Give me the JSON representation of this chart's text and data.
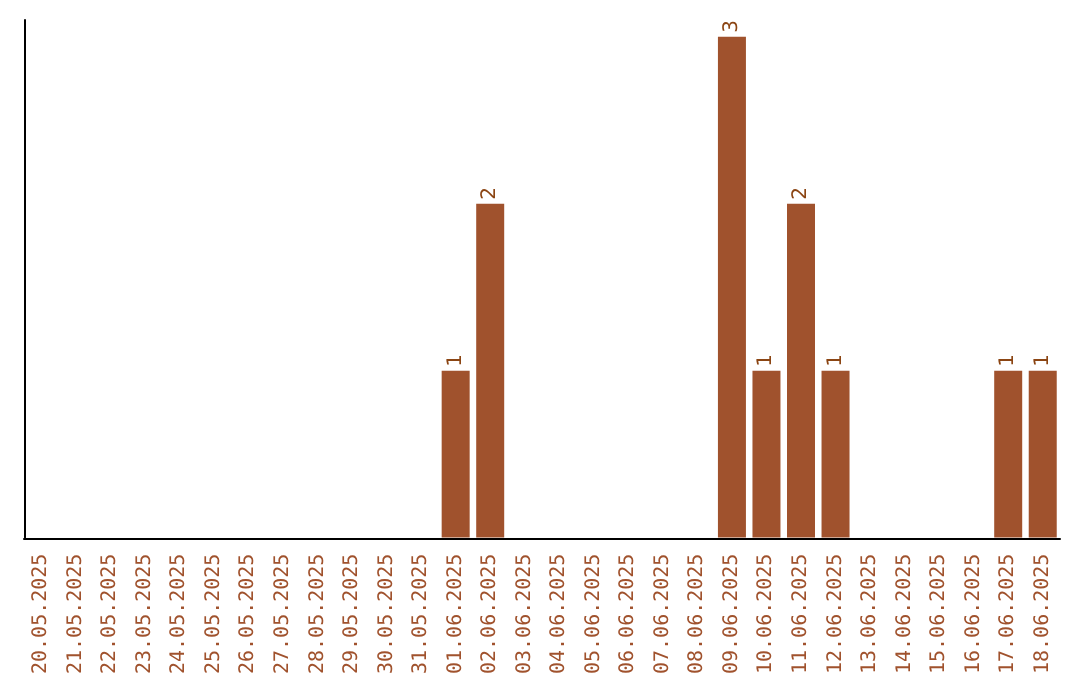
{
  "chart_data": {
    "type": "bar",
    "categories": [
      "20.05.2025",
      "21.05.2025",
      "22.05.2025",
      "23.05.2025",
      "24.05.2025",
      "25.05.2025",
      "26.05.2025",
      "27.05.2025",
      "28.05.2025",
      "29.05.2025",
      "30.05.2025",
      "31.05.2025",
      "01.06.2025",
      "02.06.2025",
      "03.06.2025",
      "04.06.2025",
      "05.06.2025",
      "06.06.2025",
      "07.06.2025",
      "08.06.2025",
      "09.06.2025",
      "10.06.2025",
      "11.06.2025",
      "12.06.2025",
      "13.06.2025",
      "14.06.2025",
      "15.06.2025",
      "16.06.2025",
      "17.06.2025",
      "18.06.2025"
    ],
    "values": [
      null,
      null,
      null,
      null,
      null,
      null,
      null,
      null,
      null,
      null,
      null,
      null,
      1,
      2,
      null,
      null,
      null,
      null,
      null,
      null,
      3,
      1,
      2,
      1,
      null,
      null,
      null,
      null,
      1,
      1
    ],
    "color": "#a0522d",
    "ylim": [
      0,
      3.1
    ],
    "data_labels": true,
    "grid": false,
    "tick_labels": "x"
  }
}
